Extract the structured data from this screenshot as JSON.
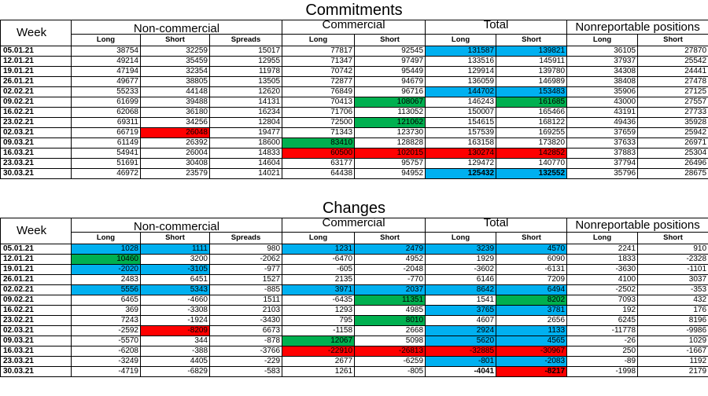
{
  "commitments": {
    "title": "Commitments",
    "headers": {
      "week": "Week",
      "groups": [
        "Non-commercial",
        "Commercial",
        "Total",
        "Nonreportable positions"
      ],
      "sub": [
        "Long",
        "Short",
        "Spreads",
        "Long",
        "Short",
        "Long",
        "Short",
        "Long",
        "Short"
      ]
    },
    "rows": [
      {
        "week": "05.01.21",
        "values": [
          "38754",
          "32259",
          "15017",
          "77817",
          "92545",
          "131587",
          "139821",
          "36105",
          "27870"
        ],
        "hl": [
          null,
          null,
          null,
          null,
          null,
          "blue",
          "blue",
          null,
          null
        ]
      },
      {
        "week": "12.01.21",
        "values": [
          "49214",
          "35459",
          "12955",
          "71347",
          "97497",
          "133516",
          "145911",
          "37937",
          "25542"
        ],
        "hl": [
          null,
          null,
          null,
          null,
          null,
          null,
          null,
          null,
          null
        ]
      },
      {
        "week": "19.01.21",
        "values": [
          "47194",
          "32354",
          "11978",
          "70742",
          "95449",
          "129914",
          "139780",
          "34308",
          "24441"
        ],
        "hl": [
          null,
          null,
          null,
          null,
          null,
          null,
          null,
          null,
          null
        ]
      },
      {
        "week": "26.01.21",
        "values": [
          "49677",
          "38805",
          "13505",
          "72877",
          "94679",
          "136059",
          "146989",
          "38408",
          "27478"
        ],
        "hl": [
          null,
          null,
          null,
          null,
          null,
          null,
          null,
          null,
          null
        ]
      },
      {
        "week": "02.02.21",
        "values": [
          "55233",
          "44148",
          "12620",
          "76849",
          "96716",
          "144702",
          "153483",
          "35906",
          "27125"
        ],
        "hl": [
          null,
          null,
          null,
          null,
          null,
          "blue",
          "blue",
          null,
          null
        ]
      },
      {
        "week": "09.02.21",
        "values": [
          "61699",
          "39488",
          "14131",
          "70413",
          "108067",
          "146243",
          "161685",
          "43000",
          "27557"
        ],
        "hl": [
          null,
          null,
          null,
          null,
          "green",
          null,
          "green",
          null,
          null
        ]
      },
      {
        "week": "16.02.21",
        "values": [
          "62068",
          "36180",
          "16234",
          "71706",
          "113052",
          "150007",
          "165466",
          "43191",
          "27733"
        ],
        "hl": [
          null,
          null,
          null,
          null,
          null,
          null,
          null,
          null,
          null
        ]
      },
      {
        "week": "23.02.21",
        "values": [
          "69311",
          "34256",
          "12804",
          "72500",
          "121062",
          "154615",
          "168122",
          "49436",
          "35928"
        ],
        "hl": [
          null,
          null,
          null,
          null,
          "green",
          null,
          null,
          null,
          null
        ]
      },
      {
        "week": "02.03.21",
        "values": [
          "66719",
          "26048",
          "19477",
          "71343",
          "123730",
          "157539",
          "169255",
          "37659",
          "25942"
        ],
        "hl": [
          null,
          "red",
          null,
          null,
          null,
          null,
          null,
          null,
          null
        ]
      },
      {
        "week": "09.03.21",
        "values": [
          "61149",
          "26392",
          "18600",
          "83410",
          "128828",
          "163158",
          "173820",
          "37633",
          "26971"
        ],
        "hl": [
          null,
          null,
          null,
          "green",
          null,
          null,
          null,
          null,
          null
        ]
      },
      {
        "week": "16.03.21",
        "values": [
          "54941",
          "26004",
          "14833",
          "60500",
          "102015",
          "130274",
          "142852",
          "37883",
          "25304"
        ],
        "hl": [
          null,
          null,
          null,
          "red",
          "red",
          "red",
          "red",
          null,
          null
        ]
      },
      {
        "week": "23.03.21",
        "values": [
          "51691",
          "30408",
          "14604",
          "63177",
          "95757",
          "129472",
          "140770",
          "37794",
          "26496"
        ],
        "hl": [
          null,
          null,
          null,
          null,
          null,
          null,
          null,
          null,
          null
        ]
      },
      {
        "week": "30.03.21",
        "values": [
          "46972",
          "23579",
          "14021",
          "64438",
          "94952",
          "125432",
          "132552",
          "35796",
          "28675"
        ],
        "hl": [
          null,
          null,
          null,
          null,
          null,
          "blue",
          "blue",
          null,
          null
        ],
        "bold": [
          false,
          false,
          false,
          false,
          false,
          true,
          true,
          false,
          false
        ]
      }
    ]
  },
  "changes": {
    "title": "Changes",
    "headers": {
      "week": "Week",
      "groups": [
        "Non-commercial",
        "Commercial",
        "Total",
        "Nonreportable positions"
      ],
      "sub": [
        "Long",
        "Short",
        "Spreads",
        "Long",
        "Short",
        "Long",
        "Short",
        "Long",
        "Short"
      ]
    },
    "rows": [
      {
        "week": "05.01.21",
        "values": [
          "1028",
          "1111",
          "980",
          "1231",
          "2479",
          "3239",
          "4570",
          "2241",
          "910"
        ],
        "hl": [
          "blue",
          "blue",
          null,
          "blue",
          "blue",
          "blue",
          "blue",
          null,
          null
        ]
      },
      {
        "week": "12.01.21",
        "values": [
          "10460",
          "3200",
          "-2062",
          "-6470",
          "4952",
          "1929",
          "6090",
          "1833",
          "-2328"
        ],
        "hl": [
          "green",
          null,
          null,
          null,
          null,
          null,
          null,
          null,
          null
        ]
      },
      {
        "week": "19.01.21",
        "values": [
          "-2020",
          "-3105",
          "-977",
          "-605",
          "-2048",
          "-3602",
          "-6131",
          "-3630",
          "-1101"
        ],
        "hl": [
          "blue",
          "blue",
          null,
          null,
          null,
          null,
          null,
          null,
          null
        ]
      },
      {
        "week": "26.01.21",
        "values": [
          "2483",
          "6451",
          "1527",
          "2135",
          "-770",
          "6146",
          "7209",
          "4100",
          "3037"
        ],
        "hl": [
          null,
          null,
          null,
          null,
          null,
          null,
          null,
          null,
          null
        ]
      },
      {
        "week": "02.02.21",
        "values": [
          "5556",
          "5343",
          "-885",
          "3971",
          "2037",
          "8642",
          "6494",
          "-2502",
          "-353"
        ],
        "hl": [
          "blue",
          "blue",
          null,
          "blue",
          "blue",
          "blue",
          "blue",
          null,
          null
        ]
      },
      {
        "week": "09.02.21",
        "values": [
          "6465",
          "-4660",
          "1511",
          "-6435",
          "11351",
          "1541",
          "8202",
          "7093",
          "432"
        ],
        "hl": [
          null,
          null,
          null,
          null,
          "green",
          null,
          "green",
          null,
          null
        ]
      },
      {
        "week": "16.02.21",
        "values": [
          "369",
          "-3308",
          "2103",
          "1293",
          "4985",
          "3765",
          "3781",
          "192",
          "176"
        ],
        "hl": [
          null,
          null,
          null,
          null,
          null,
          "blue",
          "blue",
          null,
          null
        ]
      },
      {
        "week": "23.02.21",
        "values": [
          "7243",
          "-1924",
          "-3430",
          "795",
          "8010",
          "4607",
          "2656",
          "6245",
          "8196"
        ],
        "hl": [
          null,
          null,
          null,
          null,
          "green",
          null,
          null,
          null,
          null
        ]
      },
      {
        "week": "02.03.21",
        "values": [
          "-2592",
          "-8209",
          "6673",
          "-1158",
          "2668",
          "2924",
          "1133",
          "-11778",
          "-9986"
        ],
        "hl": [
          null,
          "red",
          null,
          null,
          null,
          "blue",
          "blue",
          null,
          null
        ]
      },
      {
        "week": "09.03.21",
        "values": [
          "-5570",
          "344",
          "-878",
          "12067",
          "5098",
          "5620",
          "4565",
          "-26",
          "1029"
        ],
        "hl": [
          null,
          null,
          null,
          "green",
          null,
          "blue",
          "blue",
          null,
          null
        ]
      },
      {
        "week": "16.03.21",
        "values": [
          "-6208",
          "-388",
          "-3766",
          "-22910",
          "-26813",
          "-32885",
          "-30967",
          "250",
          "-1667"
        ],
        "hl": [
          null,
          null,
          null,
          "red",
          "red",
          "red",
          "red",
          null,
          null
        ]
      },
      {
        "week": "23.03.21",
        "values": [
          "-3249",
          "4405",
          "-229",
          "2677",
          "-6259",
          "-801",
          "-2083",
          "-89",
          "1192"
        ],
        "hl": [
          null,
          null,
          null,
          null,
          null,
          "blue",
          "blue",
          null,
          null
        ]
      },
      {
        "week": "30.03.21",
        "values": [
          "-4719",
          "-6829",
          "-583",
          "1261",
          "-805",
          "-4041",
          "-8217",
          "-1998",
          "2179"
        ],
        "hl": [
          null,
          null,
          null,
          null,
          null,
          null,
          "red",
          null,
          null
        ],
        "bold": [
          false,
          false,
          false,
          false,
          false,
          true,
          true,
          false,
          false
        ]
      }
    ]
  }
}
